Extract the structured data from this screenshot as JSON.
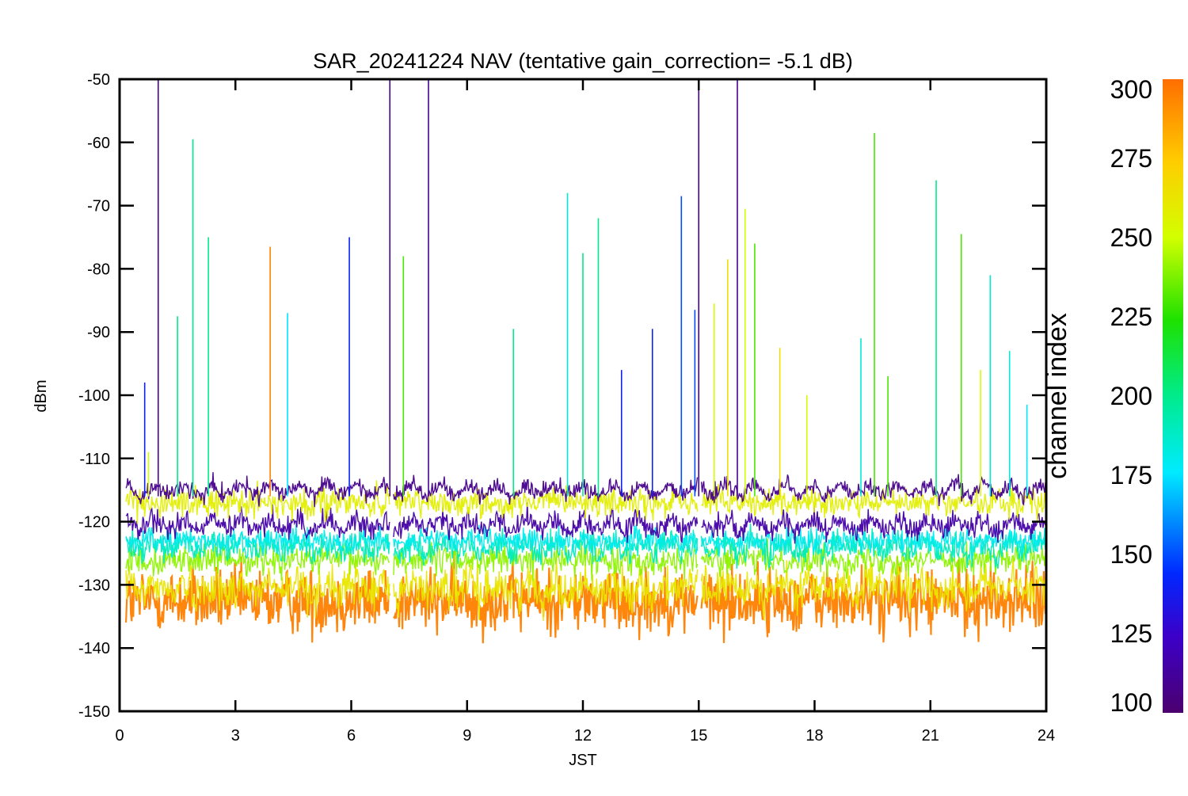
{
  "chart_data": {
    "type": "line",
    "title": "SAR_20241224 NAV (tentative gain_correction= -5.1 dB)",
    "xlabel": "JST",
    "ylabel": "dBm",
    "xlim": [
      0,
      24
    ],
    "ylim": [
      -150,
      -50
    ],
    "xticks": [
      "0",
      "3",
      "6",
      "9",
      "12",
      "15",
      "18",
      "21",
      "24"
    ],
    "yticks": [
      "-50",
      "-60",
      "-70",
      "-80",
      "-90",
      "-100",
      "-110",
      "-120",
      "-130",
      "-140",
      "-150"
    ],
    "grid": false,
    "colorbar": {
      "label": "channel index",
      "range": [
        100,
        300
      ],
      "ticks": [
        "300",
        "275",
        "250",
        "225",
        "200",
        "175",
        "150",
        "125",
        "100"
      ]
    },
    "data_gaps_hours": [
      [
        0.0,
        0.15
      ],
      [
        7.0,
        7.08
      ],
      [
        14.98,
        15.05
      ]
    ],
    "noise_bands": [
      {
        "channel": 295,
        "center": -132.5,
        "spread": 5.5
      },
      {
        "channel": 262,
        "center": -130.5,
        "spread": 3.5
      },
      {
        "channel": 240,
        "center": -126.0,
        "spread": 2.5
      },
      {
        "channel": 190,
        "center": -124.0,
        "spread": 2.5
      },
      {
        "channel": 180,
        "center": -123.0,
        "spread": 2.0
      },
      {
        "channel": 115,
        "center": -120.5,
        "spread": 2.0
      },
      {
        "channel": 258,
        "center": -117.0,
        "spread": 2.5
      },
      {
        "channel": 108,
        "center": -115.0,
        "spread": 1.5
      }
    ],
    "spikes": [
      {
        "x": 0.65,
        "y": -98,
        "channel": 140
      },
      {
        "x": 0.75,
        "y": -109,
        "channel": 250
      },
      {
        "x": 1.0,
        "y": -50,
        "channel": 110
      },
      {
        "x": 1.5,
        "y": -87.5,
        "channel": 200
      },
      {
        "x": 1.9,
        "y": -59.5,
        "channel": 200
      },
      {
        "x": 2.3,
        "y": -75,
        "channel": 200
      },
      {
        "x": 3.9,
        "y": -76.5,
        "channel": 295
      },
      {
        "x": 4.35,
        "y": -87,
        "channel": 175
      },
      {
        "x": 5.95,
        "y": -75,
        "channel": 140
      },
      {
        "x": 7.0,
        "y": -50,
        "channel": 110
      },
      {
        "x": 7.35,
        "y": -78,
        "channel": 230
      },
      {
        "x": 8.0,
        "y": -50,
        "channel": 110
      },
      {
        "x": 10.2,
        "y": -89.5,
        "channel": 200
      },
      {
        "x": 11.6,
        "y": -68,
        "channel": 185
      },
      {
        "x": 12.0,
        "y": -77.5,
        "channel": 200
      },
      {
        "x": 12.4,
        "y": -72,
        "channel": 200
      },
      {
        "x": 13.0,
        "y": -96,
        "channel": 140
      },
      {
        "x": 13.8,
        "y": -89.5,
        "channel": 140
      },
      {
        "x": 14.55,
        "y": -68.5,
        "channel": 150
      },
      {
        "x": 14.9,
        "y": -86.5,
        "channel": 150
      },
      {
        "x": 15.0,
        "y": -50,
        "channel": 110
      },
      {
        "x": 15.4,
        "y": -85.5,
        "channel": 250
      },
      {
        "x": 15.75,
        "y": -78.5,
        "channel": 265
      },
      {
        "x": 16.0,
        "y": -50,
        "channel": 110
      },
      {
        "x": 16.2,
        "y": -70.5,
        "channel": 250
      },
      {
        "x": 16.45,
        "y": -76,
        "channel": 230
      },
      {
        "x": 17.1,
        "y": -92.5,
        "channel": 265
      },
      {
        "x": 17.8,
        "y": -100,
        "channel": 250
      },
      {
        "x": 19.2,
        "y": -91,
        "channel": 185
      },
      {
        "x": 19.55,
        "y": -58.5,
        "channel": 230
      },
      {
        "x": 19.9,
        "y": -97,
        "channel": 230
      },
      {
        "x": 21.15,
        "y": -66,
        "channel": 200
      },
      {
        "x": 21.8,
        "y": -74.5,
        "channel": 230
      },
      {
        "x": 22.3,
        "y": -96,
        "channel": 250
      },
      {
        "x": 22.55,
        "y": -81,
        "channel": 185
      },
      {
        "x": 23.05,
        "y": -93,
        "channel": 185
      },
      {
        "x": 23.5,
        "y": -101.5,
        "channel": 175
      }
    ]
  }
}
